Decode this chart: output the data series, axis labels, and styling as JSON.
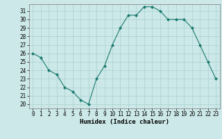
{
  "x": [
    0,
    1,
    2,
    3,
    4,
    5,
    6,
    7,
    8,
    9,
    10,
    11,
    12,
    13,
    14,
    15,
    16,
    17,
    18,
    19,
    20,
    21,
    22,
    23
  ],
  "y": [
    26,
    25.5,
    24,
    23.5,
    22,
    21.5,
    20.5,
    20,
    23,
    24.5,
    27,
    29,
    30.5,
    30.5,
    31.5,
    31.5,
    31,
    30,
    30,
    30,
    29,
    27,
    25,
    23
  ],
  "line_color": "#1a7a6e",
  "marker": "D",
  "marker_size": 2.0,
  "bg_color": "#cce8e8",
  "grid_color": "#aad0d0",
  "xlabel": "Humidex (Indice chaleur)",
  "ylim": [
    19.5,
    31.8
  ],
  "xlim": [
    -0.5,
    23.5
  ],
  "yticks": [
    20,
    21,
    22,
    23,
    24,
    25,
    26,
    27,
    28,
    29,
    30,
    31
  ],
  "xticks": [
    0,
    1,
    2,
    3,
    4,
    5,
    6,
    7,
    8,
    9,
    10,
    11,
    12,
    13,
    14,
    15,
    16,
    17,
    18,
    19,
    20,
    21,
    22,
    23
  ],
  "tick_fontsize": 5.5,
  "label_fontsize": 6.5
}
